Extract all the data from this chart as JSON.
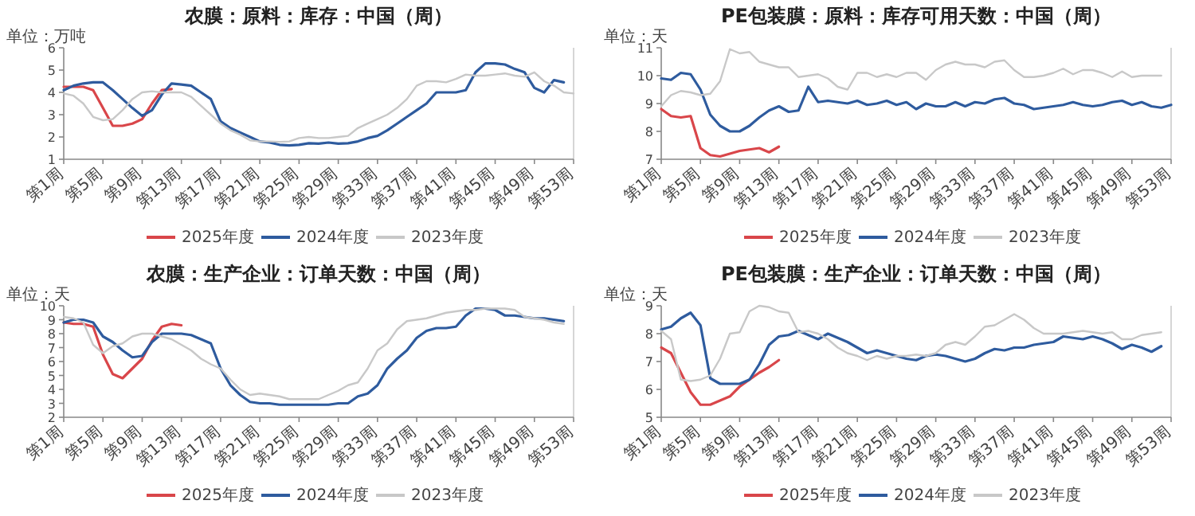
{
  "chart_data": [
    {
      "type": "line",
      "title": "农膜：原料：库存：中国（周）",
      "annotations": [
        "单位：万吨"
      ],
      "legend": "bottom",
      "grid": false,
      "marker": "none",
      "line_style": "solid",
      "categories": [
        "第1周",
        null,
        null,
        null,
        "第5周",
        null,
        null,
        null,
        "第9周",
        null,
        null,
        null,
        "第13周",
        null,
        null,
        null,
        "第17周",
        null,
        null,
        null,
        "第21周",
        null,
        null,
        null,
        "第25周",
        null,
        null,
        null,
        "第29周",
        null,
        null,
        null,
        "第33周",
        null,
        null,
        null,
        "第37周",
        null,
        null,
        null,
        "第41周",
        null,
        null,
        null,
        "第45周",
        null,
        null,
        null,
        "第49周",
        null,
        null,
        null,
        "第53周"
      ],
      "ylim": [
        1,
        6
      ],
      "yticks": [
        1,
        2,
        3,
        4,
        5,
        6
      ],
      "series": [
        {
          "name": "2025年度",
          "color": "#d9464a",
          "values": [
            4.25,
            4.25,
            4.25,
            4.1,
            3.3,
            2.5,
            2.5,
            2.6,
            2.8,
            3.5,
            4.1,
            4.15,
            null,
            null,
            null,
            null,
            null,
            null,
            null,
            null,
            null,
            null,
            null,
            null,
            null,
            null,
            null,
            null,
            null,
            null,
            null,
            null,
            null,
            null,
            null,
            null,
            null,
            null,
            null,
            null,
            null,
            null,
            null,
            null,
            null,
            null,
            null,
            null,
            null,
            null,
            null,
            null,
            null
          ]
        },
        {
          "name": "2024年度",
          "color": "#2e5b9e",
          "values": [
            4.1,
            4.3,
            4.4,
            4.45,
            4.45,
            4.1,
            3.7,
            3.3,
            2.95,
            3.2,
            3.9,
            4.4,
            4.35,
            4.3,
            4.0,
            3.7,
            2.7,
            2.4,
            2.2,
            2.0,
            1.8,
            1.75,
            1.65,
            1.62,
            1.65,
            1.72,
            1.7,
            1.75,
            1.7,
            1.72,
            1.8,
            1.95,
            2.05,
            2.3,
            2.6,
            2.9,
            3.2,
            3.5,
            4.0,
            4.0,
            4.0,
            4.1,
            4.9,
            5.3,
            5.3,
            5.25,
            5.05,
            4.9,
            4.2,
            4.0,
            4.55,
            4.45,
            null
          ]
        },
        {
          "name": "2023年度",
          "color": "#c8c8c8",
          "values": [
            3.95,
            3.85,
            3.5,
            2.9,
            2.75,
            2.8,
            3.2,
            3.7,
            4.0,
            4.05,
            4.0,
            4.0,
            4.0,
            3.8,
            3.4,
            3.0,
            2.6,
            2.3,
            2.1,
            1.85,
            1.8,
            1.8,
            1.78,
            1.8,
            1.95,
            2.0,
            1.95,
            1.95,
            2.0,
            2.05,
            2.4,
            2.6,
            2.8,
            3.0,
            3.3,
            3.7,
            4.3,
            4.5,
            4.5,
            4.45,
            4.6,
            4.8,
            4.75,
            4.75,
            4.8,
            4.85,
            4.75,
            4.7,
            4.9,
            4.5,
            4.3,
            4.0,
            3.95
          ]
        }
      ]
    },
    {
      "type": "line",
      "title": "PE包装膜：原料：库存可用天数：中国（周）",
      "annotations": [
        "单位：天"
      ],
      "legend": "bottom",
      "grid": false,
      "marker": "none",
      "line_style": "solid",
      "categories": [
        "第1周",
        null,
        null,
        null,
        "第5周",
        null,
        null,
        null,
        "第9周",
        null,
        null,
        null,
        "第13周",
        null,
        null,
        null,
        "第17周",
        null,
        null,
        null,
        "第21周",
        null,
        null,
        null,
        "第25周",
        null,
        null,
        null,
        "第29周",
        null,
        null,
        null,
        "第33周",
        null,
        null,
        null,
        "第37周",
        null,
        null,
        null,
        "第41周",
        null,
        null,
        null,
        "第45周",
        null,
        null,
        null,
        "第49周",
        null,
        null,
        null,
        "第53周"
      ],
      "ylim": [
        7,
        11
      ],
      "yticks": [
        7,
        8,
        9,
        10,
        11
      ],
      "series": [
        {
          "name": "2025年度",
          "color": "#d9464a",
          "values": [
            8.8,
            8.55,
            8.5,
            8.55,
            7.4,
            7.15,
            7.1,
            7.2,
            7.3,
            7.35,
            7.4,
            7.25,
            7.45,
            null,
            null,
            null,
            null,
            null,
            null,
            null,
            null,
            null,
            null,
            null,
            null,
            null,
            null,
            null,
            null,
            null,
            null,
            null,
            null,
            null,
            null,
            null,
            null,
            null,
            null,
            null,
            null,
            null,
            null,
            null,
            null,
            null,
            null,
            null,
            null,
            null,
            null,
            null,
            null
          ]
        },
        {
          "name": "2024年度",
          "color": "#2e5b9e",
          "values": [
            9.9,
            9.85,
            10.1,
            10.05,
            9.5,
            8.6,
            8.2,
            8.0,
            8.0,
            8.2,
            8.5,
            8.75,
            8.9,
            8.7,
            8.75,
            9.6,
            9.05,
            9.1,
            9.05,
            9.0,
            9.1,
            8.95,
            9.0,
            9.1,
            8.95,
            9.05,
            8.8,
            9.0,
            8.9,
            8.9,
            9.05,
            8.9,
            9.05,
            9.0,
            9.15,
            9.2,
            9.0,
            8.95,
            8.8,
            8.85,
            8.9,
            8.95,
            9.05,
            8.95,
            8.9,
            8.95,
            9.05,
            9.1,
            8.95,
            9.05,
            8.9,
            8.85,
            8.95
          ]
        },
        {
          "name": "2023年度",
          "color": "#c8c8c8",
          "values": [
            8.9,
            9.3,
            9.45,
            9.4,
            9.3,
            9.35,
            9.8,
            10.95,
            10.8,
            10.85,
            10.5,
            10.4,
            10.3,
            10.3,
            9.95,
            10.0,
            10.05,
            9.9,
            9.6,
            9.5,
            10.1,
            10.1,
            9.95,
            10.05,
            9.95,
            10.1,
            10.1,
            9.85,
            10.2,
            10.4,
            10.5,
            10.4,
            10.4,
            10.3,
            10.5,
            10.55,
            10.2,
            9.95,
            9.95,
            10.0,
            10.1,
            10.25,
            10.05,
            10.2,
            10.2,
            10.1,
            9.95,
            10.15,
            9.95,
            10.0,
            10.0,
            10.0,
            null
          ]
        }
      ]
    },
    {
      "type": "line",
      "title": "农膜：生产企业：订单天数：中国（周）",
      "annotations": [
        "单位：天"
      ],
      "legend": "bottom",
      "grid": false,
      "marker": "none",
      "line_style": "solid",
      "categories": [
        "第1周",
        null,
        null,
        null,
        "第5周",
        null,
        null,
        null,
        "第9周",
        null,
        null,
        null,
        "第13周",
        null,
        null,
        null,
        "第17周",
        null,
        null,
        null,
        "第21周",
        null,
        null,
        null,
        "第25周",
        null,
        null,
        null,
        "第29周",
        null,
        null,
        null,
        "第33周",
        null,
        null,
        null,
        "第37周",
        null,
        null,
        null,
        "第41周",
        null,
        null,
        null,
        "第45周",
        null,
        null,
        null,
        "第49周",
        null,
        null,
        null,
        "第53周"
      ],
      "ylim": [
        2,
        10
      ],
      "yticks": [
        2,
        3,
        4,
        5,
        6,
        7,
        8,
        9,
        10
      ],
      "series": [
        {
          "name": "2025年度",
          "color": "#d9464a",
          "values": [
            8.8,
            8.7,
            8.7,
            8.5,
            6.5,
            5.1,
            4.8,
            5.5,
            6.2,
            7.5,
            8.5,
            8.7,
            8.6,
            null,
            null,
            null,
            null,
            null,
            null,
            null,
            null,
            null,
            null,
            null,
            null,
            null,
            null,
            null,
            null,
            null,
            null,
            null,
            null,
            null,
            null,
            null,
            null,
            null,
            null,
            null,
            null,
            null,
            null,
            null,
            null,
            null,
            null,
            null,
            null,
            null,
            null,
            null,
            null
          ]
        },
        {
          "name": "2024年度",
          "color": "#2e5b9e",
          "values": [
            8.8,
            9.0,
            9.0,
            8.8,
            7.8,
            7.4,
            6.8,
            6.3,
            6.4,
            7.4,
            8.0,
            8.0,
            8.0,
            7.9,
            7.6,
            7.3,
            5.5,
            4.3,
            3.6,
            3.1,
            3.0,
            3.0,
            2.9,
            2.9,
            2.9,
            2.9,
            2.9,
            2.9,
            3.0,
            3.0,
            3.5,
            3.7,
            4.3,
            5.5,
            6.2,
            6.8,
            7.7,
            8.2,
            8.4,
            8.4,
            8.5,
            9.3,
            9.8,
            9.8,
            9.7,
            9.3,
            9.3,
            9.2,
            9.1,
            9.1,
            9.0,
            8.9,
            null
          ]
        },
        {
          "name": "2023年度",
          "color": "#c8c8c8",
          "values": [
            9.2,
            9.1,
            8.8,
            7.2,
            6.6,
            7.1,
            7.3,
            7.8,
            8.0,
            8.0,
            7.8,
            7.6,
            7.2,
            6.8,
            6.2,
            5.8,
            5.5,
            4.7,
            4.0,
            3.6,
            3.7,
            3.6,
            3.5,
            3.3,
            3.3,
            3.3,
            3.3,
            3.6,
            3.9,
            4.3,
            4.5,
            5.5,
            6.8,
            7.3,
            8.3,
            8.9,
            9.0,
            9.1,
            9.3,
            9.5,
            9.6,
            9.7,
            9.7,
            9.8,
            9.8,
            9.8,
            9.7,
            9.2,
            9.1,
            9.0,
            8.8,
            8.7,
            null
          ]
        }
      ]
    },
    {
      "type": "line",
      "title": "PE包装膜：生产企业：订单天数：中国（周）",
      "annotations": [
        "单位：天"
      ],
      "legend": "bottom",
      "grid": false,
      "marker": "none",
      "line_style": "solid",
      "categories": [
        "第1周",
        null,
        null,
        null,
        "第5周",
        null,
        null,
        null,
        "第9周",
        null,
        null,
        null,
        "第13周",
        null,
        null,
        null,
        "第17周",
        null,
        null,
        null,
        "第21周",
        null,
        null,
        null,
        "第25周",
        null,
        null,
        null,
        "第29周",
        null,
        null,
        null,
        "第33周",
        null,
        null,
        null,
        "第37周",
        null,
        null,
        null,
        "第41周",
        null,
        null,
        null,
        "第45周",
        null,
        null,
        null,
        "第49周",
        null,
        null,
        null,
        "第53周"
      ],
      "ylim": [
        5,
        9
      ],
      "yticks": [
        5,
        6,
        7,
        8,
        9
      ],
      "series": [
        {
          "name": "2025年度",
          "color": "#d9464a",
          "values": [
            7.5,
            7.3,
            6.6,
            5.9,
            5.45,
            5.45,
            5.6,
            5.75,
            6.1,
            6.35,
            6.6,
            6.8,
            7.05,
            null,
            null,
            null,
            null,
            null,
            null,
            null,
            null,
            null,
            null,
            null,
            null,
            null,
            null,
            null,
            null,
            null,
            null,
            null,
            null,
            null,
            null,
            null,
            null,
            null,
            null,
            null,
            null,
            null,
            null,
            null,
            null,
            null,
            null,
            null,
            null,
            null,
            null,
            null,
            null
          ]
        },
        {
          "name": "2024年度",
          "color": "#2e5b9e",
          "values": [
            8.15,
            8.25,
            8.55,
            8.75,
            8.3,
            6.4,
            6.2,
            6.2,
            6.2,
            6.35,
            6.9,
            7.6,
            7.9,
            7.95,
            8.1,
            7.95,
            7.8,
            8.0,
            7.85,
            7.7,
            7.5,
            7.3,
            7.4,
            7.3,
            7.2,
            7.1,
            7.05,
            7.2,
            7.25,
            7.2,
            7.1,
            7.0,
            7.1,
            7.3,
            7.45,
            7.4,
            7.5,
            7.5,
            7.6,
            7.65,
            7.7,
            7.9,
            7.85,
            7.8,
            7.9,
            7.8,
            7.65,
            7.45,
            7.6,
            7.5,
            7.35,
            7.55,
            null
          ]
        },
        {
          "name": "2023年度",
          "color": "#c8c8c8",
          "values": [
            8.1,
            7.8,
            6.35,
            6.3,
            6.35,
            6.5,
            7.1,
            8.0,
            8.05,
            8.8,
            9.0,
            8.95,
            8.8,
            8.75,
            8.05,
            8.1,
            8.0,
            7.8,
            7.5,
            7.3,
            7.2,
            7.05,
            7.2,
            7.1,
            7.2,
            7.2,
            7.25,
            7.2,
            7.3,
            7.6,
            7.7,
            7.6,
            7.9,
            8.25,
            8.3,
            8.5,
            8.7,
            8.5,
            8.2,
            8.0,
            8.0,
            8.0,
            8.05,
            8.1,
            8.05,
            8.0,
            8.05,
            7.8,
            7.8,
            7.95,
            8.0,
            8.05,
            null
          ]
        }
      ]
    }
  ]
}
